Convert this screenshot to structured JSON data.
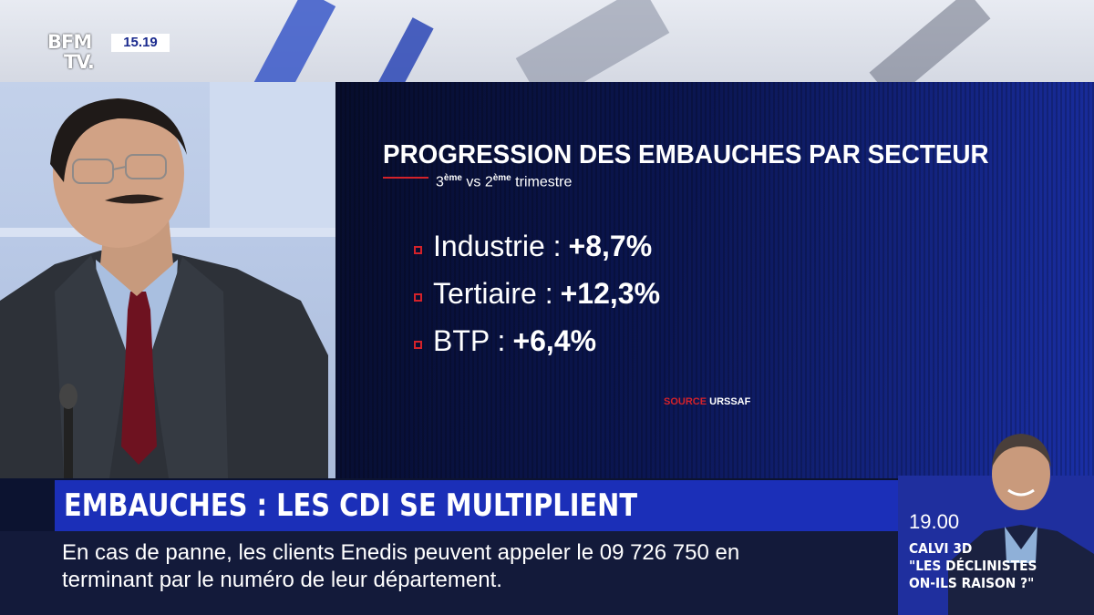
{
  "channel": {
    "logo_line1": "BFM",
    "logo_line2": "TV.",
    "clock": "15.19"
  },
  "graphic": {
    "title": "PROGRESSION DES EMBAUCHES PAR SECTEUR",
    "subtitle_n1": "3",
    "subtitle_sup1": "ème",
    "subtitle_mid": " vs 2",
    "subtitle_sup2": "ème",
    "subtitle_end": " trimestre",
    "rows": [
      {
        "label": "Industrie :",
        "value": "+8,7%"
      },
      {
        "label": "Tertiaire :",
        "value": "+12,3%"
      },
      {
        "label": "BTP :",
        "value": "+6,4%"
      }
    ],
    "source_label": "SOURCE",
    "source_value": "URSSAF",
    "accent_color": "#d4222a"
  },
  "headline": "EMBAUCHES : LES CDI SE MULTIPLIENT",
  "ticker": {
    "line1": "En cas de panne, les clients Enedis peuvent appeler le 09 726 750 en",
    "line2": "terminant par le numéro de leur département."
  },
  "next_show": {
    "time": "19.00",
    "title_line1": "CALVI 3D",
    "title_line2": "\"LES DÉCLINISTES",
    "title_line3": "ON-ILS RAISON ?\""
  }
}
